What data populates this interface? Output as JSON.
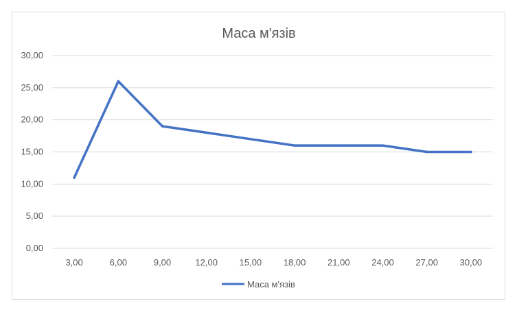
{
  "chart_data": {
    "type": "line",
    "title": "Маса м'язів",
    "xlabel": "",
    "ylabel": "",
    "categories": [
      "3,00",
      "6,00",
      "9,00",
      "12,00",
      "15,00",
      "18,00",
      "21,00",
      "24,00",
      "27,00",
      "30,00"
    ],
    "y_ticks": [
      "0,00",
      "5,00",
      "10,00",
      "15,00",
      "20,00",
      "25,00",
      "30,00"
    ],
    "ylim": [
      0,
      30
    ],
    "grid": true,
    "legend_position": "bottom",
    "series": [
      {
        "name": "Маса м'язів",
        "color": "#4472c4",
        "values": [
          11,
          26,
          19,
          18,
          17,
          16,
          16,
          16,
          15,
          15
        ]
      }
    ]
  }
}
